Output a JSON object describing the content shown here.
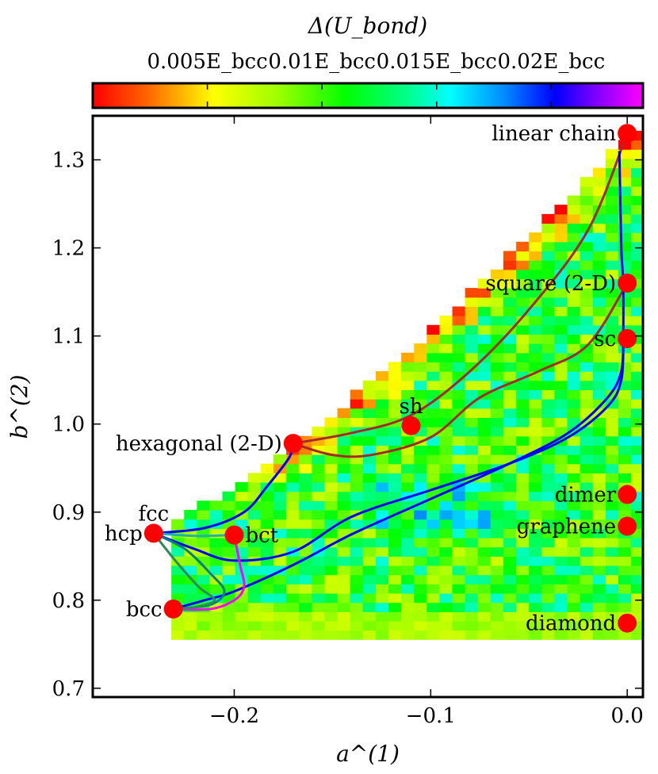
{
  "chart_data": {
    "type": "heatmap",
    "colorbar": {
      "label": "Δ(U_bond)",
      "ticks": [
        {
          "value": 0.005,
          "label": "0.005E_bcc"
        },
        {
          "value": 0.01,
          "label": "0.01E_bcc"
        },
        {
          "value": 0.015,
          "label": "0.015E_bcc"
        },
        {
          "value": 0.02,
          "label": "0.02E_bcc"
        }
      ],
      "range": [
        0.0,
        0.024
      ]
    },
    "xlabel": "a^(1)",
    "ylabel": "b^(2)",
    "xlim": [
      -0.272,
      0.008
    ],
    "ylim": [
      0.69,
      1.35
    ],
    "xticks": [
      {
        "value": -0.2,
        "label": "−0.2"
      },
      {
        "value": -0.1,
        "label": "−0.1"
      },
      {
        "value": 0.0,
        "label": "0.0"
      }
    ],
    "yticks": [
      {
        "value": 0.7,
        "label": "0.7"
      },
      {
        "value": 0.8,
        "label": "0.8"
      },
      {
        "value": 0.9,
        "label": "0.9"
      },
      {
        "value": 1.0,
        "label": "1.0"
      },
      {
        "value": 1.1,
        "label": "1.1"
      },
      {
        "value": 1.2,
        "label": "1.2"
      },
      {
        "value": 1.3,
        "label": "1.3"
      }
    ],
    "points": [
      {
        "name": "linear chain",
        "x": 0.0,
        "y": 1.33,
        "label_side": "left"
      },
      {
        "name": "square (2-D)",
        "x": 0.0,
        "y": 1.16,
        "label_side": "left"
      },
      {
        "name": "sc",
        "x": 0.0,
        "y": 1.097,
        "label_side": "left"
      },
      {
        "name": "sh",
        "x": -0.11,
        "y": 0.998,
        "label_side": "above"
      },
      {
        "name": "hexagonal (2-D)",
        "x": -0.17,
        "y": 0.978,
        "label_side": "left"
      },
      {
        "name": "dimer",
        "x": 0.0,
        "y": 0.92,
        "label_side": "left"
      },
      {
        "name": "graphene",
        "x": 0.0,
        "y": 0.884,
        "label_side": "left"
      },
      {
        "name": "fcc",
        "x": -0.241,
        "y": 0.876,
        "label_side": "above"
      },
      {
        "name": "hcp",
        "x": -0.241,
        "y": 0.876,
        "label_side": "left"
      },
      {
        "name": "bct",
        "x": -0.2,
        "y": 0.874,
        "label_side": "right"
      },
      {
        "name": "bcc",
        "x": -0.231,
        "y": 0.79,
        "label_side": "left"
      },
      {
        "name": "diamond",
        "x": 0.0,
        "y": 0.774,
        "label_side": "left"
      }
    ],
    "paths": [
      {
        "name": "hexagonal-to-linear-chain",
        "color": "#a52a2a",
        "points": [
          [
            -0.17,
            0.978
          ],
          [
            -0.14,
            0.99
          ],
          [
            -0.11,
            1.01
          ],
          [
            -0.08,
            1.06
          ],
          [
            -0.05,
            1.13
          ],
          [
            -0.02,
            1.22
          ],
          [
            0.0,
            1.33
          ]
        ]
      },
      {
        "name": "hexagonal-to-square",
        "color": "#a52a2a",
        "points": [
          [
            -0.17,
            0.978
          ],
          [
            -0.15,
            0.965
          ],
          [
            -0.13,
            0.965
          ],
          [
            -0.1,
            0.985
          ],
          [
            -0.075,
            1.03
          ],
          [
            -0.045,
            1.06
          ],
          [
            -0.02,
            1.09
          ],
          [
            0.0,
            1.16
          ]
        ]
      },
      {
        "name": "linear-chain-to-sc",
        "color": "#0000ff",
        "points": [
          [
            -0.004,
            1.31
          ],
          [
            -0.003,
            1.2
          ],
          [
            -0.002,
            1.16
          ],
          [
            -0.002,
            1.1
          ]
        ]
      },
      {
        "name": "sc-to-fcc-upper",
        "color": "#0000ff",
        "points": [
          [
            -0.002,
            1.097
          ],
          [
            -0.003,
            1.05
          ],
          [
            -0.01,
            1.02
          ],
          [
            -0.03,
            0.985
          ],
          [
            -0.06,
            0.955
          ],
          [
            -0.1,
            0.925
          ],
          [
            -0.14,
            0.895
          ],
          [
            -0.17,
            0.855
          ],
          [
            -0.2,
            0.845
          ],
          [
            -0.22,
            0.858
          ],
          [
            -0.241,
            0.876
          ]
        ]
      },
      {
        "name": "sc-to-bcc-lower",
        "color": "#0000ff",
        "points": [
          [
            -0.002,
            1.097
          ],
          [
            -0.003,
            1.06
          ],
          [
            -0.01,
            1.03
          ],
          [
            -0.03,
            0.99
          ],
          [
            -0.06,
            0.955
          ],
          [
            -0.1,
            0.915
          ],
          [
            -0.14,
            0.875
          ],
          [
            -0.17,
            0.84
          ],
          [
            -0.2,
            0.81
          ],
          [
            -0.215,
            0.8
          ],
          [
            -0.231,
            0.79
          ]
        ]
      },
      {
        "name": "fcc-to-hexagonal",
        "color": "#0000ff",
        "points": [
          [
            -0.241,
            0.876
          ],
          [
            -0.215,
            0.882
          ],
          [
            -0.195,
            0.9
          ],
          [
            -0.183,
            0.93
          ],
          [
            -0.172,
            0.962
          ],
          [
            -0.17,
            0.978
          ]
        ]
      },
      {
        "name": "fcc-to-bct",
        "color": "#20b2aa",
        "points": [
          [
            -0.241,
            0.876
          ],
          [
            -0.22,
            0.873
          ],
          [
            -0.2,
            0.874
          ]
        ]
      },
      {
        "name": "bct-to-bcc",
        "color": "#ff00ff",
        "points": [
          [
            -0.2,
            0.874
          ],
          [
            -0.197,
            0.84
          ],
          [
            -0.195,
            0.815
          ],
          [
            -0.2,
            0.8
          ],
          [
            -0.212,
            0.79
          ],
          [
            -0.231,
            0.79
          ]
        ]
      },
      {
        "name": "fcc-to-bcc",
        "color": "#008080",
        "points": [
          [
            -0.241,
            0.876
          ],
          [
            -0.225,
            0.858
          ],
          [
            -0.212,
            0.83
          ],
          [
            -0.205,
            0.81
          ],
          [
            -0.212,
            0.795
          ],
          [
            -0.231,
            0.79
          ]
        ]
      },
      {
        "name": "fcc-to-bcc-alt",
        "color": "#2e8b57",
        "points": [
          [
            -0.241,
            0.876
          ],
          [
            -0.23,
            0.845
          ],
          [
            -0.218,
            0.815
          ],
          [
            -0.21,
            0.8
          ],
          [
            -0.22,
            0.792
          ],
          [
            -0.231,
            0.79
          ]
        ]
      }
    ]
  }
}
